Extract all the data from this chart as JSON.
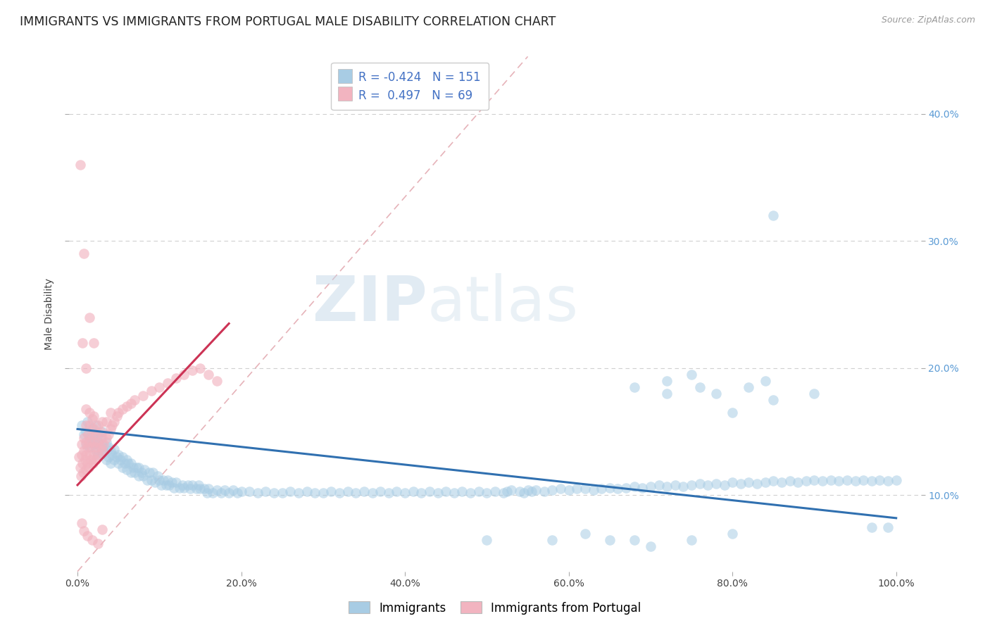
{
  "title": "IMMIGRANTS VS IMMIGRANTS FROM PORTUGAL MALE DISABILITY CORRELATION CHART",
  "source": "Source: ZipAtlas.com",
  "ylabel": "Male Disability",
  "watermark_zip": "ZIP",
  "watermark_atlas": "atlas",
  "x_tick_labels": [
    "0.0%",
    "20.0%",
    "40.0%",
    "60.0%",
    "80.0%",
    "100.0%"
  ],
  "x_tick_values": [
    0.0,
    0.2,
    0.4,
    0.6,
    0.8,
    1.0
  ],
  "y_tick_labels": [
    "10.0%",
    "20.0%",
    "30.0%",
    "40.0%"
  ],
  "y_tick_values": [
    0.1,
    0.2,
    0.3,
    0.4
  ],
  "xlim": [
    -0.01,
    1.03
  ],
  "ylim": [
    0.04,
    0.445
  ],
  "legend_blue_label": "Immigrants",
  "legend_pink_label": "Immigrants from Portugal",
  "legend_r_blue": "-0.424",
  "legend_n_blue": "151",
  "legend_r_pink": "0.497",
  "legend_n_pink": "69",
  "blue_color": "#a8cce4",
  "pink_color": "#f2b4c0",
  "blue_line_color": "#3070b0",
  "pink_line_color": "#cc3355",
  "diag_color": "#e8b0b8",
  "background_color": "#ffffff",
  "grid_color": "#d0d0d0",
  "title_fontsize": 12.5,
  "axis_label_fontsize": 10,
  "tick_fontsize": 10,
  "legend_fontsize": 12,
  "blue_trend_x0": 0.0,
  "blue_trend_y0": 0.152,
  "blue_trend_x1": 1.0,
  "blue_trend_y1": 0.082,
  "pink_trend_x0": 0.0,
  "pink_trend_y0": 0.108,
  "pink_trend_x1": 0.185,
  "pink_trend_y1": 0.235,
  "blue_scatter": [
    [
      0.005,
      0.155
    ],
    [
      0.008,
      0.148
    ],
    [
      0.01,
      0.15
    ],
    [
      0.01,
      0.14
    ],
    [
      0.012,
      0.158
    ],
    [
      0.015,
      0.145
    ],
    [
      0.015,
      0.138
    ],
    [
      0.018,
      0.152
    ],
    [
      0.018,
      0.143
    ],
    [
      0.02,
      0.148
    ],
    [
      0.02,
      0.14
    ],
    [
      0.022,
      0.155
    ],
    [
      0.022,
      0.135
    ],
    [
      0.025,
      0.142
    ],
    [
      0.025,
      0.148
    ],
    [
      0.025,
      0.132
    ],
    [
      0.028,
      0.138
    ],
    [
      0.028,
      0.145
    ],
    [
      0.03,
      0.14
    ],
    [
      0.03,
      0.133
    ],
    [
      0.03,
      0.15
    ],
    [
      0.032,
      0.135
    ],
    [
      0.035,
      0.142
    ],
    [
      0.035,
      0.128
    ],
    [
      0.038,
      0.138
    ],
    [
      0.038,
      0.13
    ],
    [
      0.04,
      0.135
    ],
    [
      0.04,
      0.125
    ],
    [
      0.042,
      0.132
    ],
    [
      0.045,
      0.128
    ],
    [
      0.045,
      0.136
    ],
    [
      0.048,
      0.13
    ],
    [
      0.05,
      0.125
    ],
    [
      0.05,
      0.132
    ],
    [
      0.052,
      0.128
    ],
    [
      0.055,
      0.122
    ],
    [
      0.055,
      0.13
    ],
    [
      0.058,
      0.125
    ],
    [
      0.06,
      0.12
    ],
    [
      0.06,
      0.128
    ],
    [
      0.062,
      0.125
    ],
    [
      0.065,
      0.118
    ],
    [
      0.065,
      0.125
    ],
    [
      0.068,
      0.122
    ],
    [
      0.07,
      0.118
    ],
    [
      0.072,
      0.122
    ],
    [
      0.075,
      0.115
    ],
    [
      0.075,
      0.122
    ],
    [
      0.078,
      0.118
    ],
    [
      0.08,
      0.115
    ],
    [
      0.082,
      0.12
    ],
    [
      0.085,
      0.112
    ],
    [
      0.088,
      0.118
    ],
    [
      0.09,
      0.112
    ],
    [
      0.092,
      0.118
    ],
    [
      0.095,
      0.11
    ],
    [
      0.098,
      0.115
    ],
    [
      0.1,
      0.112
    ],
    [
      0.102,
      0.108
    ],
    [
      0.105,
      0.112
    ],
    [
      0.108,
      0.108
    ],
    [
      0.11,
      0.112
    ],
    [
      0.112,
      0.108
    ],
    [
      0.115,
      0.11
    ],
    [
      0.118,
      0.106
    ],
    [
      0.12,
      0.11
    ],
    [
      0.125,
      0.106
    ],
    [
      0.128,
      0.108
    ],
    [
      0.13,
      0.106
    ],
    [
      0.135,
      0.108
    ],
    [
      0.138,
      0.105
    ],
    [
      0.14,
      0.108
    ],
    [
      0.145,
      0.105
    ],
    [
      0.148,
      0.108
    ],
    [
      0.15,
      0.105
    ],
    [
      0.155,
      0.105
    ],
    [
      0.158,
      0.102
    ],
    [
      0.16,
      0.105
    ],
    [
      0.165,
      0.102
    ],
    [
      0.17,
      0.104
    ],
    [
      0.175,
      0.102
    ],
    [
      0.18,
      0.104
    ],
    [
      0.185,
      0.102
    ],
    [
      0.19,
      0.104
    ],
    [
      0.195,
      0.102
    ],
    [
      0.2,
      0.103
    ],
    [
      0.21,
      0.103
    ],
    [
      0.22,
      0.102
    ],
    [
      0.23,
      0.103
    ],
    [
      0.24,
      0.102
    ],
    [
      0.25,
      0.102
    ],
    [
      0.26,
      0.103
    ],
    [
      0.27,
      0.102
    ],
    [
      0.28,
      0.103
    ],
    [
      0.29,
      0.102
    ],
    [
      0.3,
      0.102
    ],
    [
      0.31,
      0.103
    ],
    [
      0.32,
      0.102
    ],
    [
      0.33,
      0.103
    ],
    [
      0.34,
      0.102
    ],
    [
      0.35,
      0.103
    ],
    [
      0.36,
      0.102
    ],
    [
      0.37,
      0.103
    ],
    [
      0.38,
      0.102
    ],
    [
      0.39,
      0.103
    ],
    [
      0.4,
      0.102
    ],
    [
      0.41,
      0.103
    ],
    [
      0.42,
      0.102
    ],
    [
      0.43,
      0.103
    ],
    [
      0.44,
      0.102
    ],
    [
      0.45,
      0.103
    ],
    [
      0.46,
      0.102
    ],
    [
      0.47,
      0.103
    ],
    [
      0.48,
      0.102
    ],
    [
      0.49,
      0.103
    ],
    [
      0.5,
      0.102
    ],
    [
      0.51,
      0.103
    ],
    [
      0.52,
      0.102
    ],
    [
      0.525,
      0.103
    ],
    [
      0.53,
      0.104
    ],
    [
      0.54,
      0.103
    ],
    [
      0.545,
      0.102
    ],
    [
      0.55,
      0.104
    ],
    [
      0.555,
      0.103
    ],
    [
      0.56,
      0.104
    ],
    [
      0.57,
      0.103
    ],
    [
      0.58,
      0.104
    ],
    [
      0.59,
      0.105
    ],
    [
      0.6,
      0.104
    ],
    [
      0.61,
      0.105
    ],
    [
      0.62,
      0.105
    ],
    [
      0.63,
      0.104
    ],
    [
      0.64,
      0.105
    ],
    [
      0.65,
      0.106
    ],
    [
      0.66,
      0.105
    ],
    [
      0.67,
      0.106
    ],
    [
      0.68,
      0.107
    ],
    [
      0.69,
      0.106
    ],
    [
      0.7,
      0.107
    ],
    [
      0.71,
      0.108
    ],
    [
      0.72,
      0.107
    ],
    [
      0.73,
      0.108
    ],
    [
      0.74,
      0.107
    ],
    [
      0.75,
      0.108
    ],
    [
      0.76,
      0.109
    ],
    [
      0.77,
      0.108
    ],
    [
      0.78,
      0.109
    ],
    [
      0.79,
      0.108
    ],
    [
      0.8,
      0.11
    ],
    [
      0.81,
      0.109
    ],
    [
      0.82,
      0.11
    ],
    [
      0.83,
      0.109
    ],
    [
      0.84,
      0.11
    ],
    [
      0.85,
      0.111
    ],
    [
      0.86,
      0.11
    ],
    [
      0.87,
      0.111
    ],
    [
      0.88,
      0.11
    ],
    [
      0.89,
      0.111
    ],
    [
      0.9,
      0.112
    ],
    [
      0.91,
      0.111
    ],
    [
      0.92,
      0.112
    ],
    [
      0.93,
      0.111
    ],
    [
      0.94,
      0.112
    ],
    [
      0.95,
      0.111
    ],
    [
      0.96,
      0.112
    ],
    [
      0.97,
      0.111
    ],
    [
      0.98,
      0.112
    ],
    [
      0.99,
      0.111
    ],
    [
      1.0,
      0.112
    ],
    [
      0.72,
      0.19
    ],
    [
      0.85,
      0.32
    ],
    [
      0.58,
      0.065
    ],
    [
      0.65,
      0.065
    ],
    [
      0.7,
      0.06
    ],
    [
      0.75,
      0.065
    ],
    [
      0.8,
      0.07
    ],
    [
      0.97,
      0.075
    ],
    [
      0.99,
      0.075
    ],
    [
      0.5,
      0.065
    ],
    [
      0.62,
      0.07
    ],
    [
      0.68,
      0.065
    ],
    [
      0.82,
      0.185
    ],
    [
      0.76,
      0.185
    ],
    [
      0.9,
      0.18
    ],
    [
      0.75,
      0.195
    ],
    [
      0.8,
      0.165
    ],
    [
      0.85,
      0.175
    ],
    [
      0.78,
      0.18
    ],
    [
      0.68,
      0.185
    ],
    [
      0.72,
      0.18
    ],
    [
      0.84,
      0.19
    ]
  ],
  "pink_scatter": [
    [
      0.002,
      0.13
    ],
    [
      0.003,
      0.122
    ],
    [
      0.004,
      0.115
    ],
    [
      0.005,
      0.132
    ],
    [
      0.005,
      0.14
    ],
    [
      0.006,
      0.125
    ],
    [
      0.007,
      0.118
    ],
    [
      0.008,
      0.135
    ],
    [
      0.008,
      0.145
    ],
    [
      0.009,
      0.128
    ],
    [
      0.01,
      0.132
    ],
    [
      0.01,
      0.12
    ],
    [
      0.01,
      0.142
    ],
    [
      0.01,
      0.155
    ],
    [
      0.01,
      0.168
    ],
    [
      0.012,
      0.125
    ],
    [
      0.012,
      0.138
    ],
    [
      0.013,
      0.148
    ],
    [
      0.014,
      0.122
    ],
    [
      0.015,
      0.132
    ],
    [
      0.015,
      0.142
    ],
    [
      0.015,
      0.155
    ],
    [
      0.015,
      0.165
    ],
    [
      0.016,
      0.128
    ],
    [
      0.017,
      0.138
    ],
    [
      0.018,
      0.148
    ],
    [
      0.018,
      0.16
    ],
    [
      0.019,
      0.125
    ],
    [
      0.02,
      0.132
    ],
    [
      0.02,
      0.142
    ],
    [
      0.02,
      0.152
    ],
    [
      0.02,
      0.162
    ],
    [
      0.022,
      0.128
    ],
    [
      0.022,
      0.138
    ],
    [
      0.022,
      0.148
    ],
    [
      0.025,
      0.132
    ],
    [
      0.025,
      0.142
    ],
    [
      0.025,
      0.155
    ],
    [
      0.028,
      0.138
    ],
    [
      0.028,
      0.15
    ],
    [
      0.03,
      0.135
    ],
    [
      0.03,
      0.145
    ],
    [
      0.03,
      0.158
    ],
    [
      0.032,
      0.14
    ],
    [
      0.035,
      0.145
    ],
    [
      0.035,
      0.158
    ],
    [
      0.038,
      0.148
    ],
    [
      0.04,
      0.152
    ],
    [
      0.04,
      0.165
    ],
    [
      0.042,
      0.155
    ],
    [
      0.045,
      0.158
    ],
    [
      0.048,
      0.162
    ],
    [
      0.05,
      0.165
    ],
    [
      0.055,
      0.168
    ],
    [
      0.06,
      0.17
    ],
    [
      0.065,
      0.172
    ],
    [
      0.07,
      0.175
    ],
    [
      0.08,
      0.178
    ],
    [
      0.09,
      0.182
    ],
    [
      0.1,
      0.185
    ],
    [
      0.11,
      0.188
    ],
    [
      0.12,
      0.192
    ],
    [
      0.13,
      0.195
    ],
    [
      0.14,
      0.198
    ],
    [
      0.15,
      0.2
    ],
    [
      0.16,
      0.195
    ],
    [
      0.17,
      0.19
    ],
    [
      0.003,
      0.36
    ],
    [
      0.008,
      0.29
    ],
    [
      0.015,
      0.24
    ],
    [
      0.02,
      0.22
    ],
    [
      0.005,
      0.078
    ],
    [
      0.008,
      0.072
    ],
    [
      0.012,
      0.068
    ],
    [
      0.006,
      0.22
    ],
    [
      0.01,
      0.2
    ],
    [
      0.018,
      0.065
    ],
    [
      0.025,
      0.062
    ],
    [
      0.03,
      0.073
    ]
  ]
}
